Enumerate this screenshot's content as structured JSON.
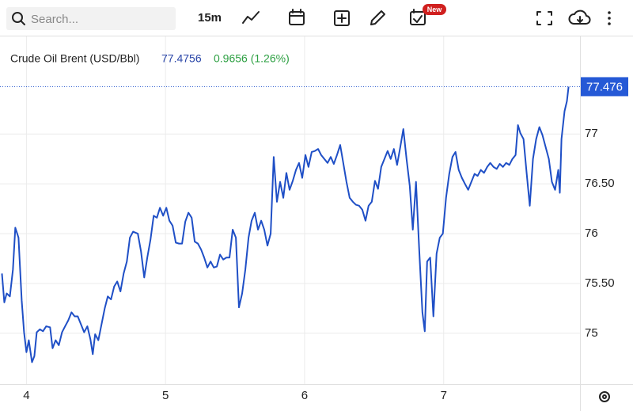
{
  "toolbar": {
    "search_placeholder": "Search...",
    "interval": "15m",
    "badge": "New"
  },
  "chart_data": {
    "type": "line",
    "title": "Crude Oil Brent (USD/Bbl)",
    "price": "77.4756",
    "change": "0.9656 (1.26%)",
    "current_price": 77.4756,
    "current_price_label": "77.476",
    "xlim": [
      3.81,
      7.98
    ],
    "xticks": [
      4,
      5,
      6,
      7
    ],
    "ylim": [
      74.49,
      77.98
    ],
    "yticks": [
      75,
      {
        "value": 75.5,
        "label": "75.50"
      },
      76,
      {
        "value": 76.5,
        "label": "76.50"
      },
      77
    ],
    "grid": true,
    "x": [
      3.824,
      3.841,
      3.858,
      3.881,
      3.903,
      3.92,
      3.943,
      3.966,
      3.983,
      4.0,
      4.017,
      4.04,
      4.057,
      4.074,
      4.097,
      4.119,
      4.142,
      4.17,
      4.188,
      4.21,
      4.233,
      4.256,
      4.278,
      4.301,
      4.324,
      4.347,
      4.369,
      4.392,
      4.415,
      4.438,
      4.46,
      4.477,
      4.494,
      4.517,
      4.54,
      4.563,
      4.585,
      4.608,
      4.631,
      4.653,
      4.676,
      4.699,
      4.722,
      4.744,
      4.767,
      4.801,
      4.824,
      4.847,
      4.869,
      4.892,
      4.915,
      4.938,
      4.96,
      4.983,
      5.006,
      5.028,
      5.051,
      5.074,
      5.097,
      5.119,
      5.142,
      5.165,
      5.188,
      5.21,
      5.233,
      5.256,
      5.278,
      5.301,
      5.324,
      5.347,
      5.369,
      5.392,
      5.415,
      5.438,
      5.46,
      5.483,
      5.506,
      5.528,
      5.551,
      5.574,
      5.597,
      5.619,
      5.642,
      5.665,
      5.688,
      5.71,
      5.733,
      5.756,
      5.778,
      5.801,
      5.824,
      5.847,
      5.869,
      5.892,
      5.915,
      5.938,
      5.96,
      5.983,
      6.006,
      6.028,
      6.051,
      6.074,
      6.097,
      6.119,
      6.142,
      6.165,
      6.188,
      6.21,
      6.233,
      6.256,
      6.278,
      6.301,
      6.324,
      6.347,
      6.369,
      6.392,
      6.415,
      6.438,
      6.46,
      6.483,
      6.506,
      6.528,
      6.551,
      6.574,
      6.597,
      6.619,
      6.642,
      6.665,
      6.688,
      6.71,
      6.733,
      6.756,
      6.778,
      6.801,
      6.824,
      6.847,
      6.864,
      6.881,
      6.903,
      6.926,
      6.949,
      6.972,
      6.994,
      7.017,
      7.04,
      7.063,
      7.085,
      7.108,
      7.131,
      7.153,
      7.176,
      7.199,
      7.222,
      7.244,
      7.267,
      7.29,
      7.313,
      7.335,
      7.358,
      7.381,
      7.403,
      7.426,
      7.449,
      7.472,
      7.494,
      7.517,
      7.534,
      7.551,
      7.574,
      7.597,
      7.619,
      7.642,
      7.665,
      7.688,
      7.71,
      7.733,
      7.756,
      7.778,
      7.801,
      7.824,
      7.835,
      7.847,
      7.869,
      7.886,
      7.898
    ],
    "series": [
      {
        "name": "Crude Oil Brent",
        "color": "#1f4fc6",
        "values": [
          75.6,
          75.31,
          75.4,
          75.37,
          75.64,
          76.06,
          75.96,
          75.33,
          75.01,
          74.81,
          74.93,
          74.71,
          74.77,
          75.01,
          75.04,
          75.02,
          75.07,
          75.06,
          74.85,
          74.93,
          74.88,
          75.01,
          75.07,
          75.13,
          75.21,
          75.17,
          75.17,
          75.09,
          75.01,
          75.07,
          74.94,
          74.79,
          74.99,
          74.93,
          75.09,
          75.25,
          75.37,
          75.34,
          75.47,
          75.52,
          75.42,
          75.6,
          75.72,
          75.96,
          76.02,
          76.0,
          75.82,
          75.56,
          75.76,
          75.94,
          76.18,
          76.16,
          76.26,
          76.18,
          76.26,
          76.13,
          76.08,
          75.91,
          75.9,
          75.9,
          76.12,
          76.21,
          76.16,
          75.92,
          75.9,
          75.84,
          75.76,
          75.66,
          75.72,
          75.66,
          75.67,
          75.79,
          75.74,
          75.76,
          75.76,
          76.04,
          75.96,
          75.26,
          75.4,
          75.64,
          75.96,
          76.13,
          76.21,
          76.04,
          76.13,
          76.04,
          75.88,
          76.0,
          76.77,
          76.32,
          76.52,
          76.36,
          76.61,
          76.44,
          76.53,
          76.64,
          76.71,
          76.56,
          76.79,
          76.67,
          76.82,
          76.83,
          76.85,
          76.79,
          76.75,
          76.71,
          76.77,
          76.7,
          76.79,
          76.89,
          76.71,
          76.52,
          76.36,
          76.32,
          76.29,
          76.28,
          76.24,
          76.13,
          76.28,
          76.32,
          76.53,
          76.45,
          76.67,
          76.75,
          76.83,
          76.75,
          76.85,
          76.69,
          76.87,
          77.05,
          76.75,
          76.48,
          76.04,
          76.52,
          75.84,
          75.21,
          75.02,
          75.72,
          75.76,
          75.17,
          75.8,
          75.96,
          76.0,
          76.36,
          76.6,
          76.77,
          76.82,
          76.64,
          76.56,
          76.5,
          76.44,
          76.52,
          76.6,
          76.58,
          76.64,
          76.61,
          76.67,
          76.71,
          76.67,
          76.65,
          76.7,
          76.67,
          76.71,
          76.69,
          76.75,
          76.79,
          77.09,
          77.01,
          76.95,
          76.6,
          76.28,
          76.75,
          76.95,
          77.07,
          76.99,
          76.87,
          76.75,
          76.52,
          76.44,
          76.64,
          76.41,
          76.95,
          77.23,
          77.33,
          77.4756
        ]
      }
    ]
  }
}
